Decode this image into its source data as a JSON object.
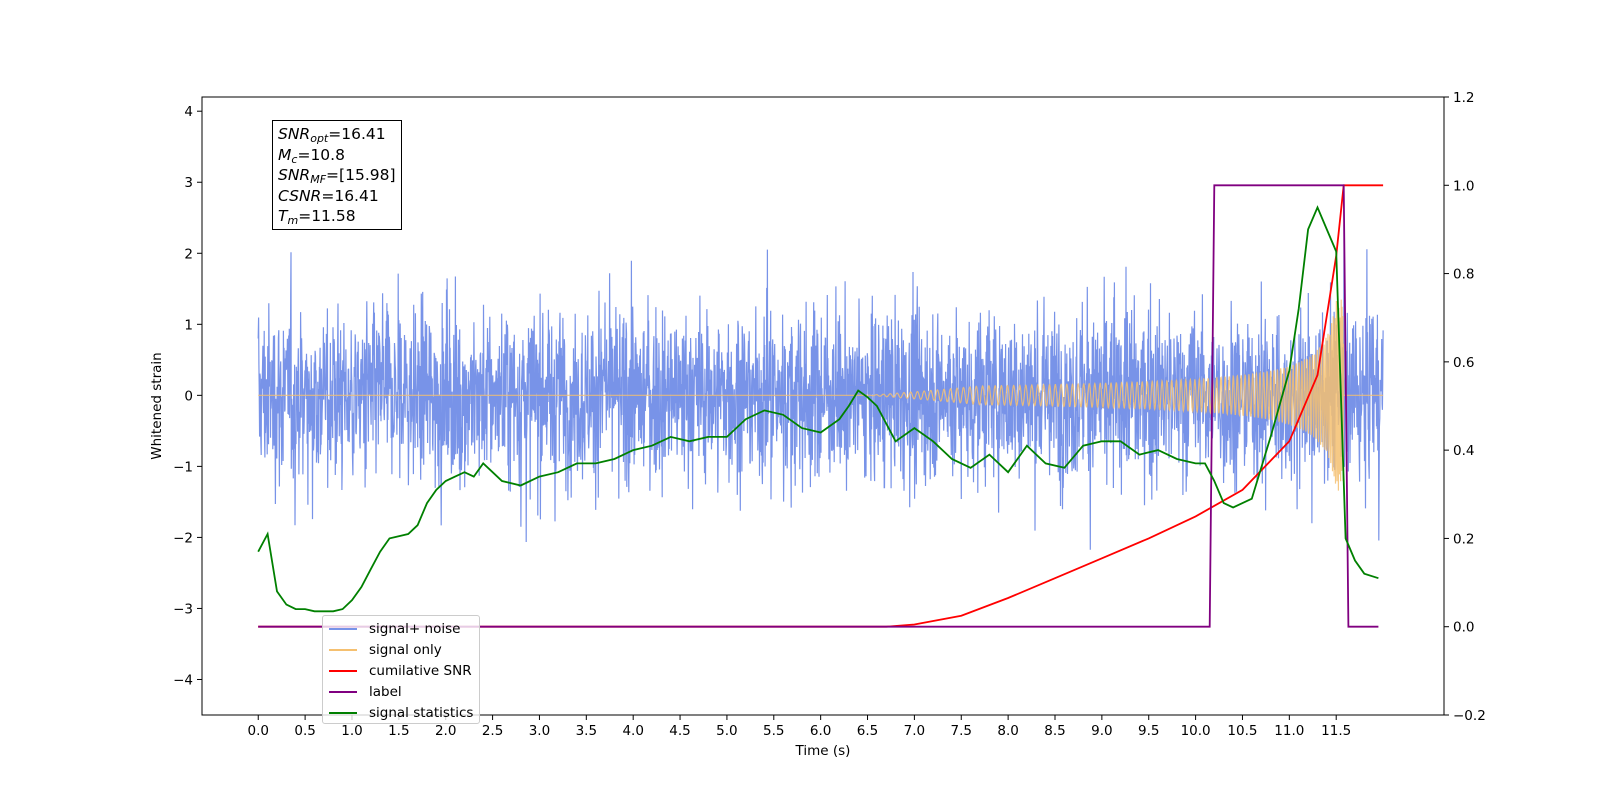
{
  "chart_data": {
    "type": "line",
    "xlabel": "Time (s)",
    "ylabel": "Whitened strain",
    "xlim": [
      -0.6,
      12.65
    ],
    "ylim": [
      -4.5,
      4.2
    ],
    "y2lim": [
      -0.2,
      1.2
    ],
    "x_ticks": [
      "0.0",
      "0.5",
      "1.0",
      "1.5",
      "2.0",
      "2.5",
      "3.0",
      "3.5",
      "4.0",
      "4.5",
      "5.0",
      "5.5",
      "6.0",
      "6.5",
      "7.0",
      "7.5",
      "8.0",
      "8.5",
      "9.0",
      "9.5",
      "10.0",
      "10.5",
      "11.0",
      "11.5"
    ],
    "y_ticks": [
      "−4",
      "−3",
      "−2",
      "−1",
      "0",
      "1",
      "2",
      "3",
      "4"
    ],
    "y2_ticks": [
      "−0.2",
      "0.0",
      "0.2",
      "0.4",
      "0.6",
      "0.8",
      "1.0",
      "1.2"
    ],
    "legend_position": "lower-left",
    "info_box": {
      "snr_opt": "16.41",
      "mc": "10.8",
      "snr_mf": "[15.98]",
      "csnr": "16.41",
      "tm": "11.58"
    },
    "series": [
      {
        "name": "signal+ noise",
        "color": "#7893e8",
        "axis": "left",
        "note": "noise band roughly between -2 and +2",
        "x_range": [
          0.0,
          12.0
        ]
      },
      {
        "name": "signal only",
        "color": "#f5c070",
        "axis": "left",
        "note": "chirp amplitude grows from 0 near 7.0 s to ~1.3 at 11.58 s",
        "x_range": [
          0.0,
          12.0
        ]
      },
      {
        "name": "cumilative SNR",
        "color": "#ff0000",
        "axis": "right",
        "x": [
          0.0,
          6.7,
          7.0,
          7.5,
          8.0,
          8.5,
          9.0,
          9.5,
          10.0,
          10.5,
          11.0,
          11.3,
          11.5,
          11.58,
          11.6,
          12.0
        ],
        "y": [
          0.0,
          0.0,
          0.005,
          0.025,
          0.065,
          0.11,
          0.155,
          0.2,
          0.25,
          0.31,
          0.42,
          0.57,
          0.84,
          1.0,
          1.0,
          1.0
        ]
      },
      {
        "name": "label",
        "color": "#800080",
        "axis": "right",
        "x": [
          0.0,
          10.15,
          10.2,
          11.58,
          11.63,
          11.95
        ],
        "y": [
          0.0,
          0.0,
          1.0,
          1.0,
          0.0,
          0.0
        ]
      },
      {
        "name": "signal statistics",
        "color": "#008000",
        "axis": "right",
        "x": [
          0.0,
          0.1,
          0.2,
          0.3,
          0.4,
          0.5,
          0.6,
          0.8,
          0.9,
          1.0,
          1.1,
          1.2,
          1.3,
          1.4,
          1.6,
          1.7,
          1.8,
          1.9,
          2.0,
          2.1,
          2.2,
          2.3,
          2.4,
          2.5,
          2.6,
          2.8,
          3.0,
          3.2,
          3.4,
          3.6,
          3.8,
          4.0,
          4.2,
          4.4,
          4.6,
          4.8,
          5.0,
          5.2,
          5.4,
          5.6,
          5.8,
          6.0,
          6.2,
          6.3,
          6.4,
          6.5,
          6.6,
          6.8,
          7.0,
          7.2,
          7.4,
          7.6,
          7.8,
          8.0,
          8.2,
          8.4,
          8.6,
          8.8,
          9.0,
          9.2,
          9.4,
          9.6,
          9.8,
          10.0,
          10.1,
          10.2,
          10.3,
          10.4,
          10.5,
          10.6,
          10.8,
          11.0,
          11.1,
          11.2,
          11.3,
          11.4,
          11.5,
          11.6,
          11.7,
          11.8,
          11.95
        ],
        "y": [
          0.17,
          0.21,
          0.08,
          0.05,
          0.04,
          0.04,
          0.035,
          0.035,
          0.04,
          0.06,
          0.09,
          0.13,
          0.17,
          0.2,
          0.21,
          0.23,
          0.28,
          0.31,
          0.33,
          0.34,
          0.35,
          0.34,
          0.37,
          0.35,
          0.33,
          0.32,
          0.34,
          0.35,
          0.37,
          0.37,
          0.38,
          0.4,
          0.41,
          0.43,
          0.42,
          0.43,
          0.43,
          0.47,
          0.49,
          0.48,
          0.45,
          0.44,
          0.47,
          0.5,
          0.535,
          0.52,
          0.5,
          0.42,
          0.45,
          0.42,
          0.38,
          0.36,
          0.39,
          0.35,
          0.41,
          0.37,
          0.36,
          0.41,
          0.42,
          0.42,
          0.39,
          0.4,
          0.38,
          0.37,
          0.37,
          0.33,
          0.28,
          0.27,
          0.28,
          0.29,
          0.43,
          0.58,
          0.72,
          0.9,
          0.95,
          0.9,
          0.85,
          0.2,
          0.15,
          0.12,
          0.11
        ]
      }
    ]
  }
}
